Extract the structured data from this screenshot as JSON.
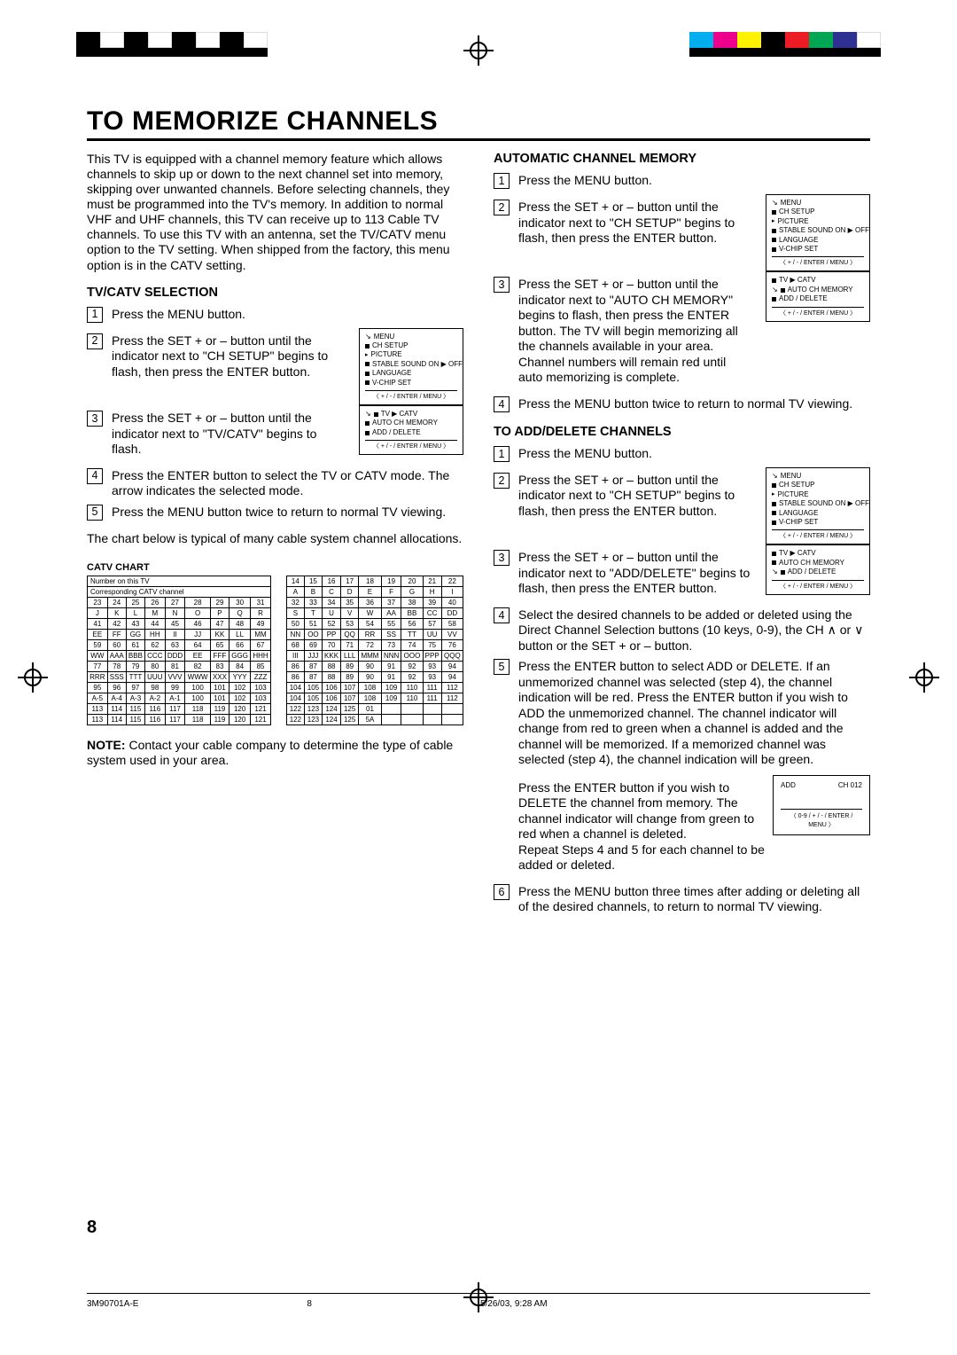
{
  "page": {
    "title": "To Memorize Channels",
    "pagenum": "8",
    "footer_left": "3M90701A-E",
    "footer_mid": "8",
    "footer_right": "5/26/03, 9:28 AM"
  },
  "intro": "This TV is equipped with a channel memory feature which allows channels to skip up or down to the next channel set into memory, skipping over unwanted channels. Before selecting channels, they must be programmed into the TV's memory. In addition to normal VHF and UHF channels, this TV can receive up to 113 Cable TV channels. To use this TV with an antenna, set the TV/CATV menu option to the TV setting. When shipped from the factory, this menu option is in the CATV setting.",
  "tvcatv": {
    "heading": "TV/CATV SELECTION",
    "steps": [
      "Press the MENU button.",
      "Press the SET + or – button until the indicator next to \"CH SETUP\" begins to flash, then press the ENTER button.",
      "Press the SET + or – button until the indicator next to \"TV/CATV\" begins to flash.",
      "Press the ENTER button to select the TV or CATV mode. The arrow indicates the selected mode.",
      "Press the MENU button twice to return to normal TV viewing."
    ],
    "chart_intro": "The chart below is typical of many cable system channel allocations.",
    "catv_chart_label": "CATV CHART",
    "note": "NOTE: Contact your cable company to determine the type of cable system used in your area."
  },
  "auto": {
    "heading": "AUTOMATIC CHANNEL MEMORY",
    "steps": [
      "Press the MENU button.",
      "Press the SET + or – button until the indicator next to \"CH SETUP\" begins to flash, then press the ENTER button.",
      "Press the SET + or – button until the indicator next to \"AUTO CH MEMORY\" begins to flash, then press the ENTER button. The TV will begin memorizing all the channels available in your area. Channel numbers will remain red until auto memorizing is complete.",
      "Press the MENU button twice to return to normal TV viewing."
    ]
  },
  "adddel": {
    "heading": "TO ADD/DELETE CHANNELS",
    "steps": [
      "Press the MENU button.",
      "Press the SET + or – button until the indicator next to \"CH SETUP\" begins to flash, then press the ENTER button.",
      "Press the SET + or – button until the indicator next to \"ADD/DELETE\" begins to flash, then press the ENTER button.",
      "Select the desired channels to be added or deleted using the Direct Channel Selection buttons (10 keys, 0-9), the CH ∧ or ∨ button or the SET + or – button.",
      "Press the ENTER button to select ADD or DELETE. If an unmemorized channel was selected (step 4), the channel indication will be red. Press the ENTER button if you wish to ADD the unmemorized channel. The channel indicator will change from red to green when a channel is added and the channel will be memorized. If a memorized channel was selected (step 4), the channel indication will be green.",
      "Press the MENU button three times after adding or deleting all of the desired channels, to return to normal TV viewing."
    ],
    "step5b": "Press the ENTER button if you wish to DELETE the channel from memory. The channel indicator will change from green to red when a channel is deleted.\nRepeat Steps 4 and 5 for each channel to be added or deleted."
  },
  "osd": {
    "menu": [
      "MENU",
      "CH SETUP",
      "PICTURE",
      "STABLE SOUND  ON ▶ OFF",
      "LANGUAGE",
      "V-CHIP SET"
    ],
    "menu_foot": "〈 + / - / ENTER / MENU 〉",
    "sub": [
      "TV ▶ CATV",
      "AUTO CH MEMORY",
      "ADD / DELETE"
    ],
    "sub_foot": "〈 + / - / ENTER / MENU 〉",
    "add_label": "ADD",
    "add_ch": "CH 012",
    "add_foot": "〈 0-9 / + / - / ENTER / MENU 〉"
  },
  "catv": {
    "hdr1": "Number on this TV",
    "hdr2": "Corresponding CATV channel",
    "rows_left": [
      [
        "23",
        "24",
        "25",
        "26",
        "27",
        "28",
        "29",
        "30",
        "31"
      ],
      [
        "J",
        "K",
        "L",
        "M",
        "N",
        "O",
        "P",
        "Q",
        "R"
      ],
      [
        "41",
        "42",
        "43",
        "44",
        "45",
        "46",
        "47",
        "48",
        "49"
      ],
      [
        "EE",
        "FF",
        "GG",
        "HH",
        "II",
        "JJ",
        "KK",
        "LL",
        "MM"
      ],
      [
        "59",
        "60",
        "61",
        "62",
        "63",
        "64",
        "65",
        "66",
        "67"
      ],
      [
        "WW",
        "AAA",
        "BBB",
        "CCC",
        "DDD",
        "EE",
        "FFF",
        "GGG",
        "HHH"
      ],
      [
        "77",
        "78",
        "79",
        "80",
        "81",
        "82",
        "83",
        "84",
        "85"
      ],
      [
        "RRR",
        "SSS",
        "TTT",
        "UUU",
        "VVV",
        "WWW",
        "XXX",
        "YYY",
        "ZZZ"
      ],
      [
        "95",
        "96",
        "97",
        "98",
        "99",
        "100",
        "101",
        "102",
        "103"
      ],
      [
        "A-5",
        "A-4",
        "A-3",
        "A-2",
        "A-1",
        "100",
        "101",
        "102",
        "103"
      ],
      [
        "113",
        "114",
        "115",
        "116",
        "117",
        "118",
        "119",
        "120",
        "121"
      ],
      [
        "113",
        "114",
        "115",
        "116",
        "117",
        "118",
        "119",
        "120",
        "121"
      ]
    ],
    "rows_right": [
      [
        "14",
        "15",
        "16",
        "17",
        "18",
        "19",
        "20",
        "21",
        "22"
      ],
      [
        "A",
        "B",
        "C",
        "D",
        "E",
        "F",
        "G",
        "H",
        "I"
      ],
      [
        "32",
        "33",
        "34",
        "35",
        "36",
        "37",
        "38",
        "39",
        "40"
      ],
      [
        "S",
        "T",
        "U",
        "V",
        "W",
        "AA",
        "BB",
        "CC",
        "DD"
      ],
      [
        "50",
        "51",
        "52",
        "53",
        "54",
        "55",
        "56",
        "57",
        "58"
      ],
      [
        "NN",
        "OO",
        "PP",
        "QQ",
        "RR",
        "SS",
        "TT",
        "UU",
        "VV"
      ],
      [
        "68",
        "69",
        "70",
        "71",
        "72",
        "73",
        "74",
        "75",
        "76"
      ],
      [
        "III",
        "JJJ",
        "KKK",
        "LLL",
        "MMM",
        "NNN",
        "OOO",
        "PPP",
        "QQQ"
      ],
      [
        "86",
        "87",
        "88",
        "89",
        "90",
        "91",
        "92",
        "93",
        "94"
      ],
      [
        "86",
        "87",
        "88",
        "89",
        "90",
        "91",
        "92",
        "93",
        "94"
      ],
      [
        "104",
        "105",
        "106",
        "107",
        "108",
        "109",
        "110",
        "111",
        "112"
      ],
      [
        "104",
        "105",
        "106",
        "107",
        "108",
        "109",
        "110",
        "111",
        "112"
      ],
      [
        "122",
        "123",
        "124",
        "125",
        "01",
        "",
        "",
        "",
        ""
      ],
      [
        "122",
        "123",
        "124",
        "125",
        "5A",
        "",
        "",
        "",
        ""
      ]
    ]
  },
  "colors": {
    "black": "#000000",
    "white": "#ffffff"
  }
}
